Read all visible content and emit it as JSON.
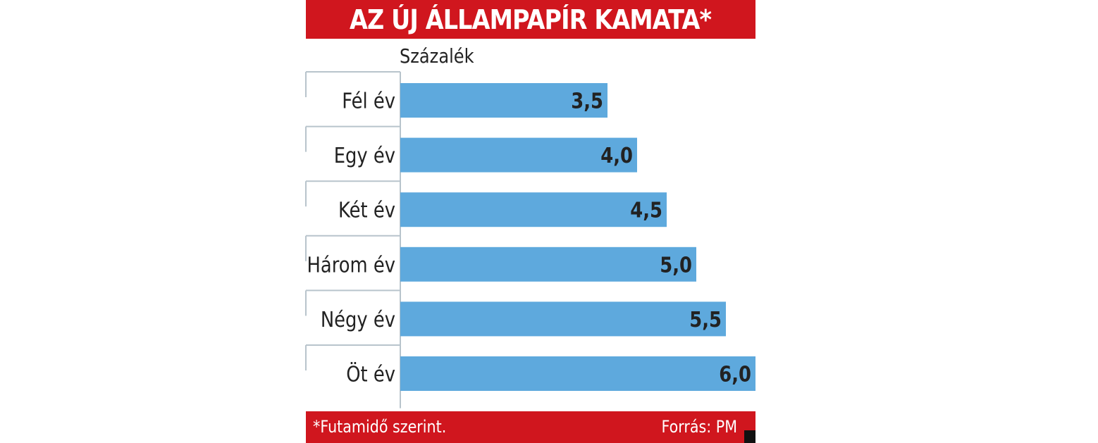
{
  "header": {
    "title": "AZ ÚJ ÁLLAMPAPÍR KAMATA*"
  },
  "footer": {
    "footnote": "*Futamidő szerint.",
    "source": "Forrás: PM"
  },
  "colors": {
    "accent": "#d0161e",
    "bar": "#5ea9dd",
    "grid": "#b8c4cc",
    "text": "#222222"
  },
  "chart_data": {
    "type": "bar",
    "orientation": "horizontal",
    "title": "AZ ÚJ ÁLLAMPAPÍR KAMATA*",
    "unit_label": "Százalék",
    "categories": [
      "Fél év",
      "Egy év",
      "Két év",
      "Három év",
      "Négy év",
      "Öt év"
    ],
    "values": [
      3.5,
      4.0,
      4.5,
      5.0,
      5.5,
      6.0
    ],
    "value_labels": [
      "3,5",
      "4,0",
      "4,5",
      "5,0",
      "5,5",
      "6,0"
    ],
    "xlim": [
      0,
      6.0
    ],
    "grid": false,
    "legend": "none"
  }
}
